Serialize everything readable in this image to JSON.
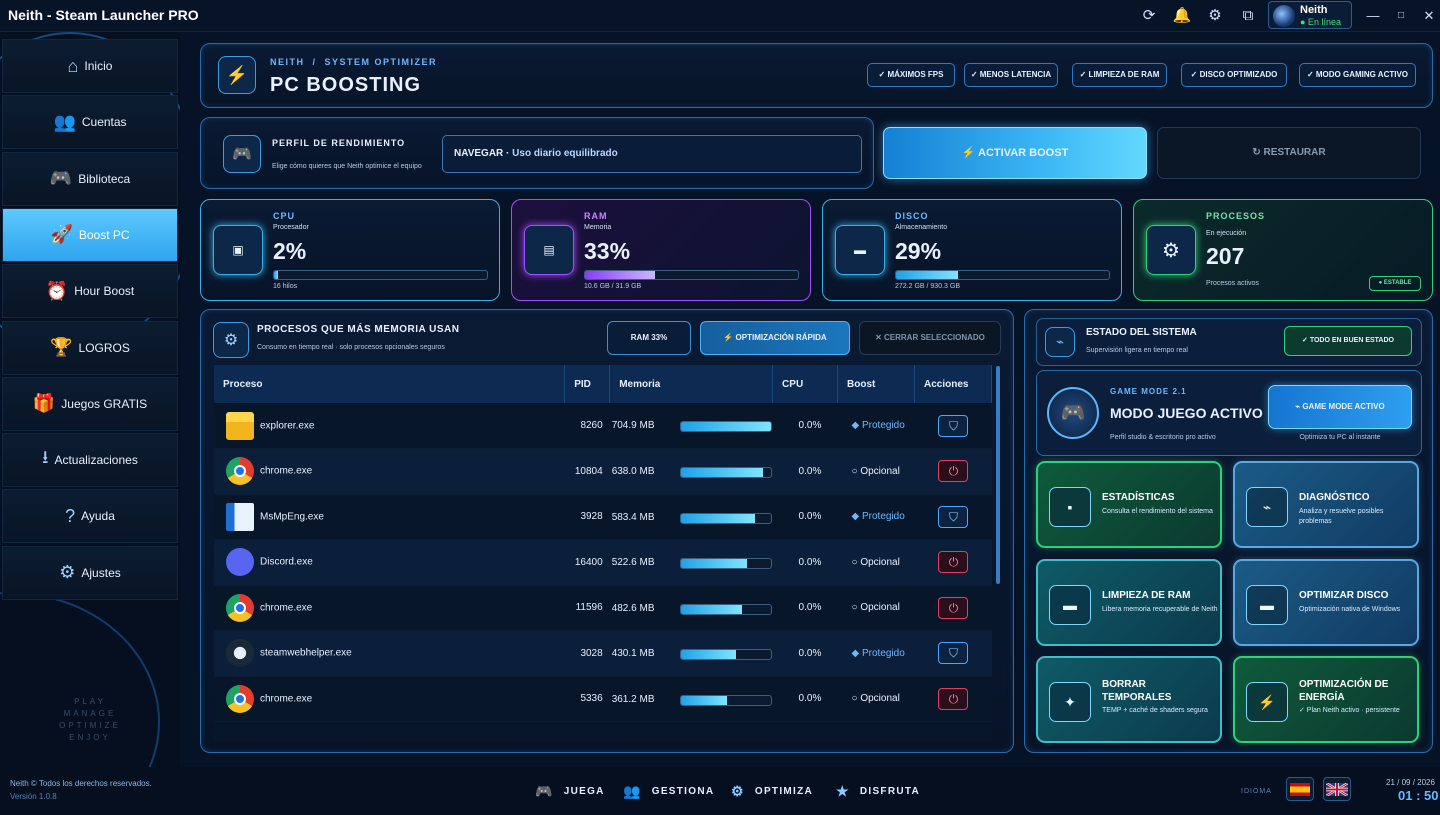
{
  "window": {
    "title": "Neith - Steam Launcher PRO",
    "user": {
      "name": "Neith",
      "status": "● En línea"
    }
  },
  "sidebar": {
    "items": [
      {
        "label": "Inicio",
        "icon": "home-icon",
        "glyph": "⌂"
      },
      {
        "label": "Cuentas",
        "icon": "users-icon",
        "glyph": "👥"
      },
      {
        "label": "Biblioteca",
        "icon": "gamepad-icon",
        "glyph": "🎮"
      },
      {
        "label": "Boost PC",
        "icon": "rocket-icon",
        "glyph": "🚀",
        "active": true
      },
      {
        "label": "Hour Boost",
        "icon": "clock-icon",
        "glyph": "⏰"
      },
      {
        "label": "LOGROS",
        "icon": "trophy-icon",
        "glyph": "🏆"
      },
      {
        "label": "Juegos GRATIS",
        "icon": "gift-icon",
        "glyph": "🎁"
      },
      {
        "label": "Actualizaciones",
        "icon": "download-icon",
        "glyph": "⭳"
      },
      {
        "label": "Ayuda",
        "icon": "help-icon",
        "glyph": "?"
      },
      {
        "label": "Ajustes",
        "icon": "gear-icon",
        "glyph": "⚙"
      }
    ],
    "tagline": [
      "PLAY",
      "MANAGE",
      "OPTIMIZE",
      "ENJOY"
    ]
  },
  "header": {
    "breadcrumb_root": "NEITH",
    "breadcrumb_sep": "/",
    "breadcrumb_section": "SYSTEM OPTIMIZER",
    "title": "PC BOOSTING",
    "chips": [
      "✓ MÁXIMOS FPS",
      "✓ MENOS LATENCIA",
      "✓ LIMPIEZA DE RAM",
      "✓ DISCO OPTIMIZADO",
      "✓ MODO GAMING ACTIVO"
    ]
  },
  "profile": {
    "title": "PERFIL DE RENDIMIENTO",
    "subtitle": "Elige cómo quieres que Neith optimice el equipo",
    "selected_mode": "NAVEGAR",
    "selected_desc": "Uso diario equilibrado",
    "boost_label": "⚡ ACTIVAR BOOST",
    "restore_label": "↻ RESTAURAR"
  },
  "stats": [
    {
      "key": "CPU",
      "sub": "Procesador",
      "value": "2%",
      "foot": "16 hilos",
      "fill": 0.02
    },
    {
      "key": "RAM",
      "sub": "Memoria",
      "value": "33%",
      "foot": "10.6 GB / 31.9 GB",
      "fill": 0.33
    },
    {
      "key": "DISCO",
      "sub": "Almacenamiento",
      "value": "29%",
      "foot": "272.2 GB / 930.3 GB",
      "fill": 0.29
    },
    {
      "key": "PROCESOS",
      "sub": "En ejecución",
      "value": "207",
      "foot": "Procesos activos",
      "badge": "● ESTABLE"
    }
  ],
  "processes": {
    "title": "PROCESOS QUE MÁS MEMORIA USAN",
    "subtitle": "Consumo en tiempo real · solo procesos opcionales seguros",
    "ram_chip": "RAM  33%",
    "quick_label": "⚡ OPTIMIZACIÓN RÁPIDA",
    "close_label": "✕ CERRAR SELECCIONADO",
    "columns": [
      "Proceso",
      "PID",
      "Memoria",
      "CPU",
      "Boost",
      "Acciones"
    ],
    "rows": [
      {
        "name": "explorer.exe",
        "pid": "8260",
        "mem": "704.9 MB",
        "fill": 1.0,
        "cpu": "0.0%",
        "boost": "Protegido",
        "prot": true,
        "ico": "folder"
      },
      {
        "name": "chrome.exe",
        "pid": "10804",
        "mem": "638.0 MB",
        "fill": 0.91,
        "cpu": "0.0%",
        "boost": "Opcional",
        "prot": false,
        "ico": "chrome"
      },
      {
        "name": "MsMpEng.exe",
        "pid": "3928",
        "mem": "583.4 MB",
        "fill": 0.83,
        "cpu": "0.0%",
        "boost": "Protegido",
        "prot": true,
        "ico": "win"
      },
      {
        "name": "Discord.exe",
        "pid": "16400",
        "mem": "522.6 MB",
        "fill": 0.74,
        "cpu": "0.0%",
        "boost": "Opcional",
        "prot": false,
        "ico": "discord"
      },
      {
        "name": "chrome.exe",
        "pid": "11596",
        "mem": "482.6 MB",
        "fill": 0.68,
        "cpu": "0.0%",
        "boost": "Opcional",
        "prot": false,
        "ico": "chrome"
      },
      {
        "name": "steamwebhelper.exe",
        "pid": "3028",
        "mem": "430.1 MB",
        "fill": 0.61,
        "cpu": "0.0%",
        "boost": "Protegido",
        "prot": true,
        "ico": "steam"
      },
      {
        "name": "chrome.exe",
        "pid": "5336",
        "mem": "361.2 MB",
        "fill": 0.51,
        "cpu": "0.0%",
        "boost": "Opcional",
        "prot": false,
        "ico": "chrome"
      }
    ]
  },
  "system": {
    "title": "ESTADO DEL SISTEMA",
    "subtitle": "Supervisión ligera en tiempo real",
    "ok_label": "✓ TODO EN BUEN ESTADO",
    "gm_tag": "GAME MODE 2.1",
    "gm_title": "MODO JUEGO ACTIVO",
    "gm_desc": "Perfil studio & escritorio pro activo",
    "gm_btn": "⌁ GAME MODE ACTIVO",
    "gm_btn_desc": "Optimiza tu PC al instante"
  },
  "tiles": [
    {
      "title": "ESTADÍSTICAS",
      "desc": "Consulta el rendimiento del sistema",
      "glyph": "▪",
      "icon": "stats-icon"
    },
    {
      "title": "DIAGNÓSTICO",
      "desc": "Analiza y resuelve posibles problemas",
      "glyph": "⌁",
      "icon": "diagnostic-icon"
    },
    {
      "title": "LIMPIEZA DE RAM",
      "desc": "Libera memoria recuperable de Neith",
      "glyph": "▬",
      "icon": "ram-icon"
    },
    {
      "title": "OPTIMIZAR DISCO",
      "desc": "Optimización nativa de Windows",
      "glyph": "▬",
      "icon": "disk-icon"
    },
    {
      "title": "BORRAR TEMPORALES",
      "desc": "TEMP + caché de shaders segura",
      "glyph": "✦",
      "icon": "sparkle-icon"
    },
    {
      "title": "OPTIMIZACIÓN DE ENERGÍA",
      "desc": "✓ Plan Neith activo · persistente",
      "glyph": "⚡",
      "icon": "energy-icon"
    }
  ],
  "footer": {
    "copyright": "Neith © Todos los derechos reservados.",
    "version": "Versión 1.0.8",
    "nav": [
      "JUEGA",
      "GESTIONA",
      "OPTIMIZA",
      "DISFRUTA"
    ],
    "lang_label": "IDIOMA",
    "date": "21 / 09 / 2026",
    "time": "01 : 50"
  }
}
